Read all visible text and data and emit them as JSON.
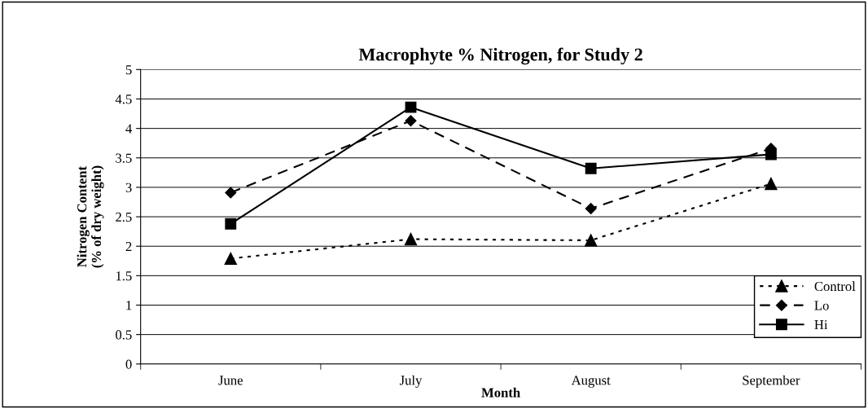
{
  "chart_data": {
    "type": "line",
    "title": "Macrophyte % Nitrogen, for Study 2",
    "xlabel": "Month",
    "ylabel": "Nitrogen Content\n(% of dry weight)",
    "categories": [
      "June",
      "July",
      "August",
      "September"
    ],
    "series": [
      {
        "name": "Control",
        "color": "#000000",
        "marker": "triangle",
        "line_style": "dotted",
        "values": [
          1.79,
          2.12,
          2.1,
          3.06
        ]
      },
      {
        "name": "Lo",
        "color": "#000000",
        "marker": "diamond",
        "line_style": "dashed",
        "values": [
          2.91,
          4.13,
          2.64,
          3.66
        ]
      },
      {
        "name": "Hi",
        "color": "#000000",
        "marker": "square",
        "line_style": "solid",
        "values": [
          2.38,
          4.36,
          3.32,
          3.56
        ]
      }
    ],
    "ylim": [
      0,
      5
    ],
    "yticks": [
      0,
      0.5,
      1,
      1.5,
      2,
      2.5,
      3,
      3.5,
      4,
      4.5,
      5
    ],
    "grid": "y",
    "legend": "bottom right"
  }
}
